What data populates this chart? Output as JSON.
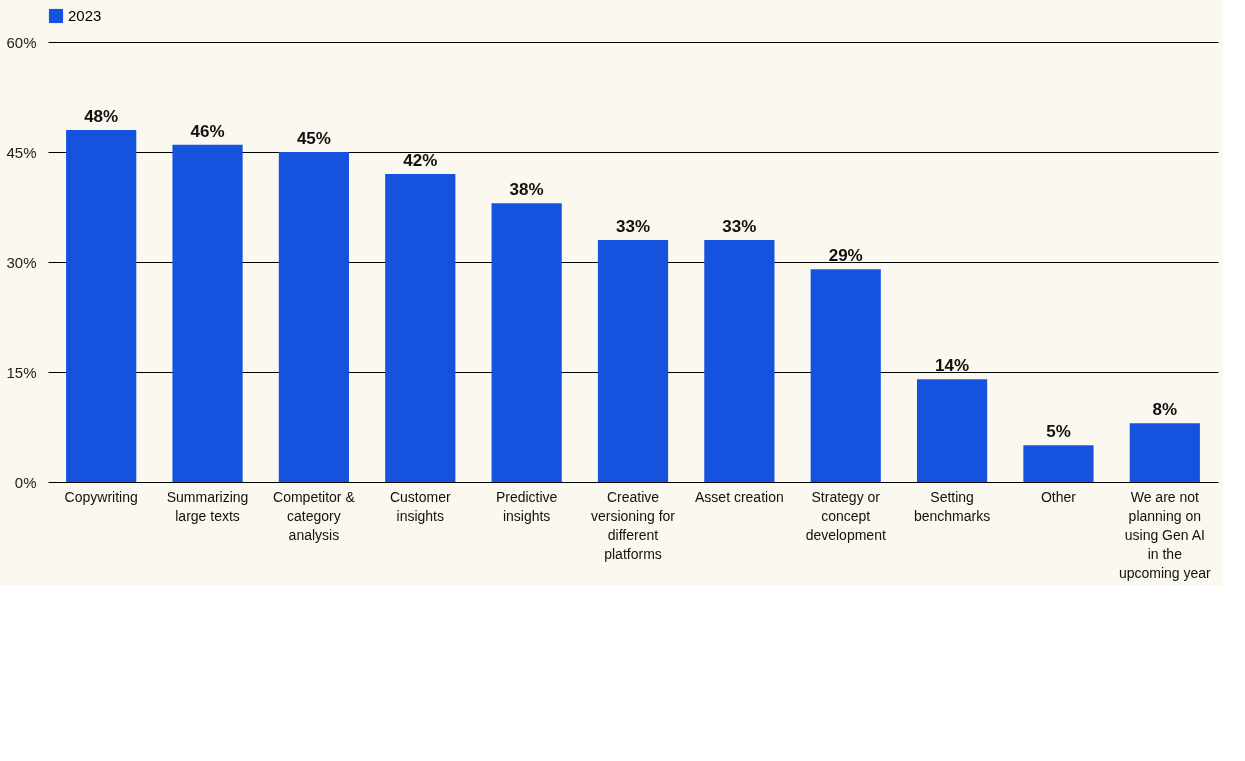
{
  "chart_data": {
    "type": "bar",
    "categories": [
      "Copywriting",
      "Summarizing large texts",
      "Competitor & category analysis",
      "Customer insights",
      "Predictive insights",
      "Creative versioning for different platforms",
      "Asset creation",
      "Strategy or concept development",
      "Setting benchmarks",
      "Other",
      "We are not planning on using Gen AI in the upcoming year"
    ],
    "series": [
      {
        "name": "2023",
        "color": "#1553de",
        "values": [
          48,
          46,
          45,
          42,
          38,
          33,
          33,
          29,
          14,
          5,
          8
        ]
      }
    ],
    "ylim": [
      0,
      60
    ],
    "yticks": [
      {
        "value": 0,
        "label": "0%"
      },
      {
        "value": 15,
        "label": "15%"
      },
      {
        "value": 30,
        "label": "30%"
      },
      {
        "value": 45,
        "label": "45%"
      },
      {
        "value": 60,
        "label": "60%"
      }
    ],
    "value_labels": [
      "48%",
      "46%",
      "45%",
      "42%",
      "38%",
      "33%",
      "33%",
      "29%",
      "14%",
      "5%",
      "8%"
    ],
    "grid": "y",
    "legend": "top left"
  }
}
